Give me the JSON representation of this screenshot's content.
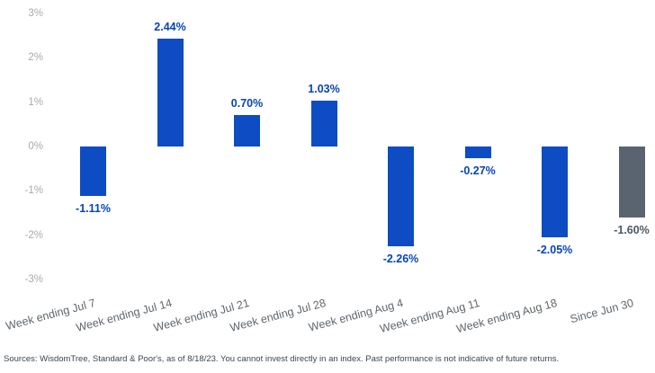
{
  "chart_data": {
    "type": "bar",
    "title": "",
    "xlabel": "",
    "ylabel": "",
    "categories": [
      "Week ending Jul 7",
      "Week ending Jul 14",
      "Week ending Jul 21",
      "Week ending Jul 28",
      "Week ending Aug 4",
      "Week ending Aug 11",
      "Week ending Aug 18",
      "Since Jun 30"
    ],
    "values": [
      -1.11,
      2.44,
      0.7,
      1.03,
      -2.26,
      -0.27,
      -2.05,
      -1.6
    ],
    "value_labels": [
      "-1.11%",
      "2.44%",
      "0.70%",
      "1.03%",
      "-2.26%",
      "-0.27%",
      "-2.05%",
      "-1.60%"
    ],
    "bar_colors": [
      "#0d4cc3",
      "#0d4cc3",
      "#0d4cc3",
      "#0d4cc3",
      "#0d4cc3",
      "#0d4cc3",
      "#0d4cc3",
      "#5a6470"
    ],
    "value_label_colors": [
      "#0645b5",
      "#0645b5",
      "#0645b5",
      "#0645b5",
      "#0645b5",
      "#0645b5",
      "#0645b5",
      "#4d5861"
    ],
    "y_ticks": [
      3,
      2,
      1,
      0,
      -1,
      -2,
      -3
    ],
    "y_tick_labels": [
      "3%",
      "2%",
      "1%",
      "0%",
      "-1%",
      "-2%",
      "-3%"
    ],
    "ylim": [
      -3,
      3
    ],
    "grid": false,
    "legend": null
  },
  "colors": {
    "bar_blue": "#0d4cc3",
    "bar_gray": "#5a6470",
    "label_blue": "#0645b5",
    "label_gray": "#4d5861",
    "axis_tick_text": "#a6aaad",
    "category_text": "#5f666d",
    "footer_text": "#3c4650"
  },
  "footer": {
    "source_text": "Sources: WisdomTree, Standard & Poor's, as of 8/18/23. You cannot invest directly in an index. Past performance is not indicative of future returns."
  }
}
